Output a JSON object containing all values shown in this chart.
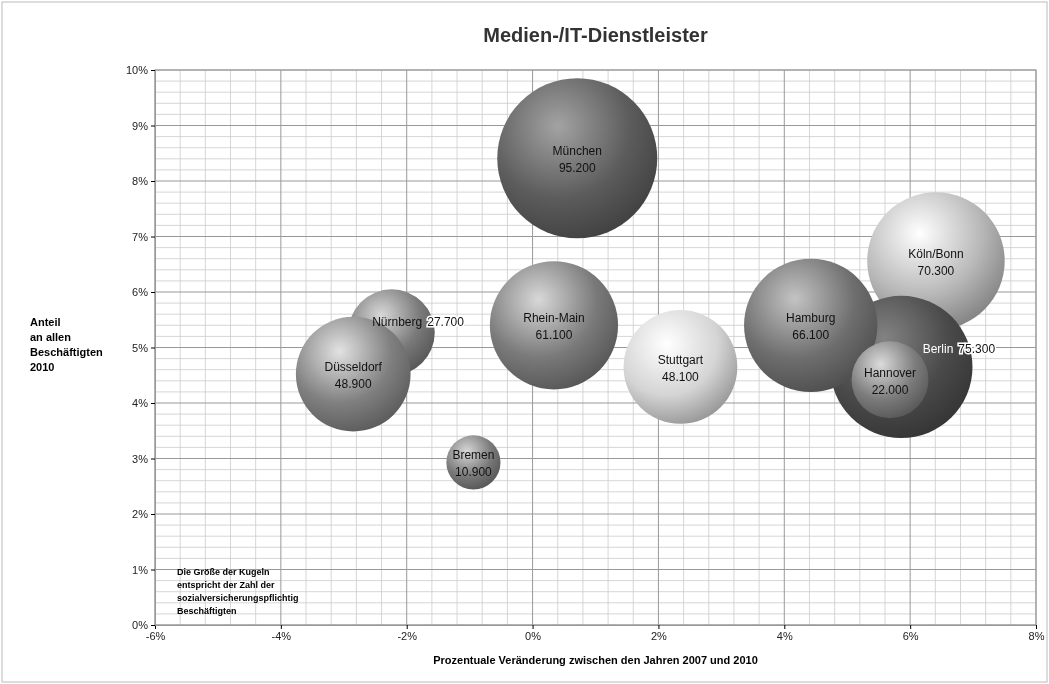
{
  "chart_data": {
    "type": "bubble",
    "title": "Medien-/IT-Dienstleister",
    "xlabel": "Prozentuale Veränderung zwischen den Jahren 2007 und 2010",
    "ylabel": "Anteil\nan allen\nBeschäftigten\n2010",
    "annotations": [
      "Die Größe der Kugeln\nentspricht der Zahl der\nsozialversicherungspflichtig\nBeschäftigten"
    ],
    "xlim": [
      -6,
      8
    ],
    "xticks": [
      {
        "value": -6,
        "label": "-6%"
      },
      {
        "value": -4,
        "label": "-4%"
      },
      {
        "value": -2,
        "label": "-2%"
      },
      {
        "value": 0,
        "label": "0%"
      },
      {
        "value": 2,
        "label": "2%"
      },
      {
        "value": 4,
        "label": "4%"
      },
      {
        "value": 6,
        "label": "6%"
      },
      {
        "value": 8,
        "label": "8%"
      }
    ],
    "ylim": [
      0,
      10
    ],
    "yticks": [
      {
        "value": 0,
        "label": "0%"
      },
      {
        "value": 1,
        "label": "1%"
      },
      {
        "value": 2,
        "label": "2%"
      },
      {
        "value": 3,
        "label": "3%"
      },
      {
        "value": 4,
        "label": "4%"
      },
      {
        "value": 5,
        "label": "5%"
      },
      {
        "value": 6,
        "label": "6%"
      },
      {
        "value": 7,
        "label": "7%"
      },
      {
        "value": 8,
        "label": "8%"
      },
      {
        "value": 9,
        "label": "9%"
      },
      {
        "value": 10,
        "label": "10%"
      }
    ],
    "grid": true,
    "series": [
      {
        "name": "München",
        "color": "#5c5c5c",
        "x": [
          0.71
        ],
        "values": [
          8.41
        ],
        "sizes": [
          95200
        ],
        "value_labels": [
          "95.200"
        ]
      },
      {
        "name": "Köln/Bonn",
        "color": "#b8b8b8",
        "x": [
          6.41
        ],
        "values": [
          6.56
        ],
        "sizes": [
          70300
        ],
        "value_labels": [
          "70.300"
        ]
      },
      {
        "name": "Berlin",
        "color": "#4a4a4a",
        "x": [
          5.86
        ],
        "values": [
          4.65
        ],
        "sizes": [
          75300
        ],
        "value_labels": [
          "75.300"
        ]
      },
      {
        "name": "Hamburg",
        "color": "#6e6e6e",
        "x": [
          4.42
        ],
        "values": [
          5.4
        ],
        "sizes": [
          66100
        ],
        "value_labels": [
          "66.100"
        ]
      },
      {
        "name": "Rhein-Main",
        "color": "#7a7a7a",
        "x": [
          0.34
        ],
        "values": [
          5.4
        ],
        "sizes": [
          61100
        ],
        "value_labels": [
          "61.100"
        ]
      },
      {
        "name": "Nürnberg",
        "color": "#7a7a7a",
        "x": [
          -2.24
        ],
        "values": [
          5.27
        ],
        "sizes": [
          27700
        ],
        "value_labels": [
          "27.700"
        ]
      },
      {
        "name": "Düsseldorf",
        "color": "#808080",
        "x": [
          -2.85
        ],
        "values": [
          4.52
        ],
        "sizes": [
          48900
        ],
        "value_labels": [
          "48.900"
        ]
      },
      {
        "name": "Stuttgart",
        "color": "#d4d4d4",
        "x": [
          2.35
        ],
        "values": [
          4.65
        ],
        "sizes": [
          48100
        ],
        "value_labels": [
          "48.100"
        ]
      },
      {
        "name": "Hannover",
        "color": "#7c7c7c",
        "x": [
          5.68
        ],
        "values": [
          4.42
        ],
        "sizes": [
          22000
        ],
        "value_labels": [
          "22.000"
        ]
      },
      {
        "name": "Bremen",
        "color": "#7a7a7a",
        "x": [
          -0.94
        ],
        "values": [
          2.93
        ],
        "sizes": [
          10900
        ],
        "value_labels": [
          "10.900"
        ]
      }
    ]
  }
}
